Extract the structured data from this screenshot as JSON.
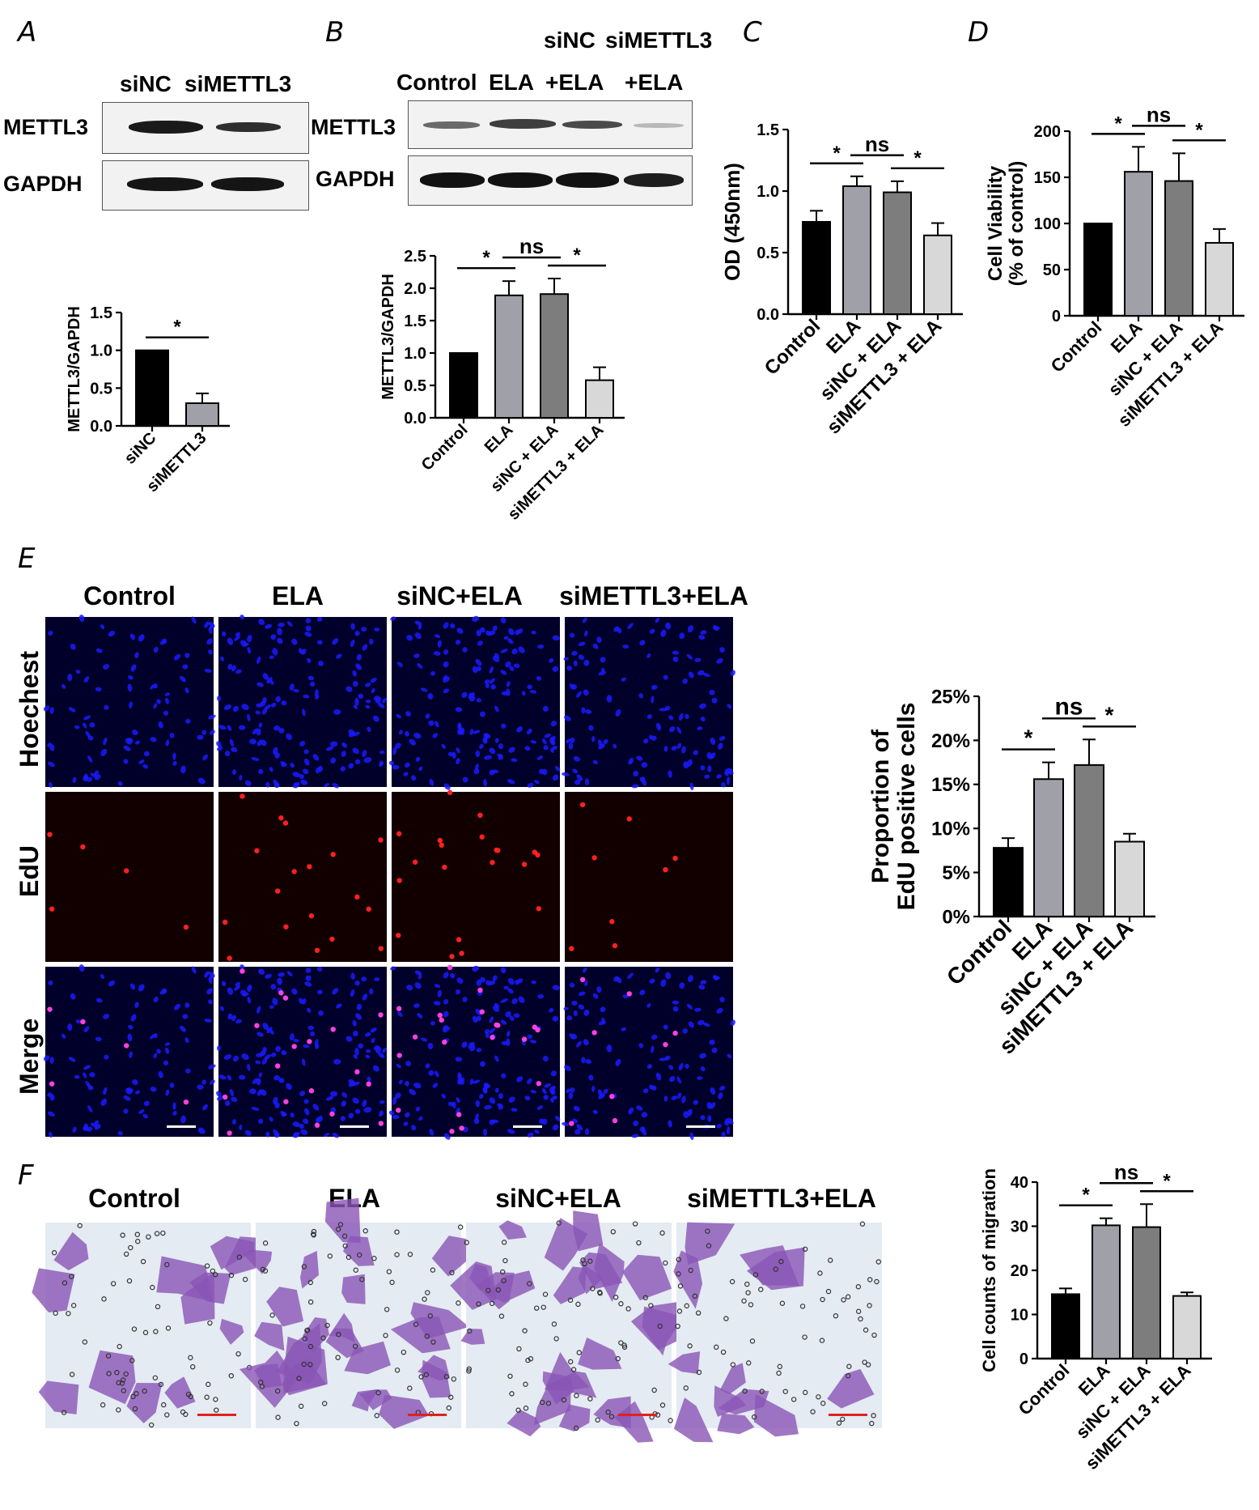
{
  "panel_letters": {
    "a": "A",
    "b": "B",
    "c": "C",
    "d": "D",
    "e": "E",
    "f": "F"
  },
  "panel_a": {
    "lanes": [
      "siNC",
      "siMETTL3"
    ],
    "rows": [
      "METTL3",
      "GAPDH"
    ]
  },
  "panel_b": {
    "lanes_top": [
      "siNC",
      "siMETTL3"
    ],
    "lanes": [
      "Control",
      "ELA",
      "+ELA",
      "+ELA"
    ],
    "rows": [
      "METTL3",
      "GAPDH"
    ]
  },
  "panel_e": {
    "columns": [
      "Control",
      "ELA",
      "siNC+ELA",
      "siMETTL3+ELA"
    ],
    "rows": [
      "Hoechest",
      "EdU",
      "Merge"
    ]
  },
  "panel_f": {
    "columns": [
      "Control",
      "ELA",
      "siNC+ELA",
      "siMETTL3+ELA"
    ]
  },
  "colors": {
    "black": "#000000",
    "light_gray": "#a0a0a8",
    "mid_gray": "#7d7d7d",
    "pale_gray": "#d8d8d8",
    "nuclei_blue": "#1a1aff",
    "edu_red": "#ff2020",
    "stain_purple": "#8a55b5"
  },
  "chart_data": [
    {
      "id": "A",
      "type": "bar",
      "categories": [
        "siNC",
        "siMETTL3"
      ],
      "values": [
        1.0,
        0.3
      ],
      "errors": [
        0,
        0.13
      ],
      "ylabel": "METTL3/GAPDH",
      "ylim": [
        0,
        1.5
      ],
      "yticks": [
        "0.0",
        "0.5",
        "1.0",
        "1.5"
      ],
      "significance": [
        {
          "pair": [
            0,
            1
          ],
          "label": "*"
        }
      ]
    },
    {
      "id": "B",
      "type": "bar",
      "categories": [
        "Control",
        "ELA",
        "siNC + ELA",
        "siMETTL3 + ELA"
      ],
      "values": [
        1.0,
        1.89,
        1.91,
        0.58
      ],
      "errors": [
        0,
        0.22,
        0.24,
        0.2
      ],
      "ylabel": "METTL3/GAPDH",
      "ylim": [
        0,
        2.5
      ],
      "yticks": [
        "0.0",
        "0.5",
        "1.0",
        "1.5",
        "2.0",
        "2.5"
      ],
      "significance": [
        {
          "pair": [
            0,
            1
          ],
          "label": "*"
        },
        {
          "pair": [
            1,
            2
          ],
          "label": "ns"
        },
        {
          "pair": [
            2,
            3
          ],
          "label": "*"
        }
      ]
    },
    {
      "id": "C",
      "type": "bar",
      "categories": [
        "Control",
        "ELA",
        "siNC + ELA",
        "siMETTL3 + ELA"
      ],
      "values": [
        0.75,
        1.04,
        0.99,
        0.64
      ],
      "errors": [
        0.09,
        0.08,
        0.09,
        0.1
      ],
      "ylabel": "OD (450nm)",
      "ylim": [
        0,
        1.5
      ],
      "yticks": [
        "0.0",
        "0.5",
        "1.0",
        "1.5"
      ],
      "significance": [
        {
          "pair": [
            0,
            1
          ],
          "label": "*"
        },
        {
          "pair": [
            1,
            2
          ],
          "label": "ns"
        },
        {
          "pair": [
            2,
            3
          ],
          "label": "*"
        }
      ]
    },
    {
      "id": "D",
      "type": "bar",
      "categories": [
        "Control",
        "ELA",
        "siNC + ELA",
        "siMETTL3 + ELA"
      ],
      "values": [
        100,
        156,
        146,
        79
      ],
      "errors": [
        0,
        27,
        30,
        15
      ],
      "ylabel": "Cell Viability",
      "ylabel2": "(% of control)",
      "ylim": [
        0,
        200
      ],
      "yticks": [
        "0",
        "50",
        "100",
        "150",
        "200"
      ],
      "significance": [
        {
          "pair": [
            0,
            1
          ],
          "label": "*"
        },
        {
          "pair": [
            1,
            2
          ],
          "label": "ns"
        },
        {
          "pair": [
            2,
            3
          ],
          "label": "*"
        }
      ]
    },
    {
      "id": "E",
      "type": "bar",
      "categories": [
        "Control",
        "ELA",
        "siNC + ELA",
        "siMETTL3 + ELA"
      ],
      "values": [
        7.8,
        15.6,
        17.2,
        8.5
      ],
      "errors": [
        1.1,
        1.9,
        2.9,
        0.9
      ],
      "ylabel": "Proportion of",
      "ylabel2": "EdU positive cells",
      "ylim": [
        0,
        25
      ],
      "yticks": [
        "0%",
        "5%",
        "10%",
        "15%",
        "20%",
        "25%"
      ],
      "significance": [
        {
          "pair": [
            0,
            1
          ],
          "label": "*"
        },
        {
          "pair": [
            1,
            2
          ],
          "label": "ns"
        },
        {
          "pair": [
            2,
            3
          ],
          "label": "*"
        }
      ]
    },
    {
      "id": "F",
      "type": "bar",
      "categories": [
        "Control",
        "ELA",
        "siNC + ELA",
        "siMETTL3 + ELA"
      ],
      "values": [
        14.6,
        30.2,
        29.8,
        14.2
      ],
      "errors": [
        1.3,
        1.6,
        5.2,
        0.8
      ],
      "ylabel": "Cell counts of migration",
      "ylim": [
        0,
        40
      ],
      "yticks": [
        "0",
        "10",
        "20",
        "30",
        "40"
      ],
      "significance": [
        {
          "pair": [
            0,
            1
          ],
          "label": "*"
        },
        {
          "pair": [
            1,
            2
          ],
          "label": "ns"
        },
        {
          "pair": [
            2,
            3
          ],
          "label": "*"
        }
      ]
    }
  ]
}
